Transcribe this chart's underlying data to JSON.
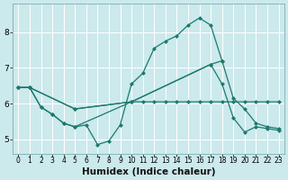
{
  "xlabel": "Humidex (Indice chaleur)",
  "bg_color": "#cce9ec",
  "line_color": "#1a7a6e",
  "grid_color": "#ffffff",
  "xlim": [
    -0.5,
    23.5
  ],
  "ylim": [
    4.6,
    8.8
  ],
  "yticks": [
    5,
    6,
    7,
    8
  ],
  "xticks": [
    0,
    1,
    2,
    3,
    4,
    5,
    6,
    7,
    8,
    9,
    10,
    11,
    12,
    13,
    14,
    15,
    16,
    17,
    18,
    19,
    20,
    21,
    22,
    23
  ],
  "line1_x": [
    0,
    1,
    2,
    3,
    4,
    5,
    6,
    7,
    8,
    9,
    10,
    11,
    12,
    13,
    14,
    15,
    16,
    17,
    18
  ],
  "line1_y": [
    6.45,
    6.45,
    5.9,
    5.7,
    5.45,
    5.35,
    5.4,
    4.85,
    4.95,
    5.4,
    6.55,
    6.85,
    7.55,
    7.75,
    7.9,
    8.2,
    8.4,
    8.2,
    7.2
  ],
  "line2_x": [
    0,
    1,
    2,
    3,
    4,
    5,
    10,
    11,
    12,
    13,
    14,
    15,
    16,
    17,
    18,
    19,
    20,
    21,
    22,
    23
  ],
  "line2_y": [
    6.45,
    6.45,
    5.9,
    5.7,
    5.45,
    5.35,
    6.05,
    6.05,
    6.05,
    6.05,
    6.05,
    6.05,
    6.05,
    6.05,
    6.05,
    6.05,
    6.05,
    6.05,
    6.05,
    6.05
  ],
  "line3_x": [
    0,
    1,
    5,
    10,
    17,
    18,
    19,
    20,
    21,
    22,
    23
  ],
  "line3_y": [
    6.45,
    6.45,
    5.85,
    6.05,
    7.1,
    6.55,
    5.6,
    5.2,
    5.35,
    5.3,
    5.25
  ],
  "line4_x": [
    0,
    1,
    5,
    10,
    17,
    18,
    19,
    20,
    21,
    22,
    23
  ],
  "line4_y": [
    6.45,
    6.45,
    5.85,
    6.05,
    7.1,
    7.2,
    6.15,
    5.85,
    5.45,
    5.35,
    5.3
  ],
  "fontsize_xlabel": 7.5,
  "fontsize_tick": 5.5,
  "markersize": 2.5
}
